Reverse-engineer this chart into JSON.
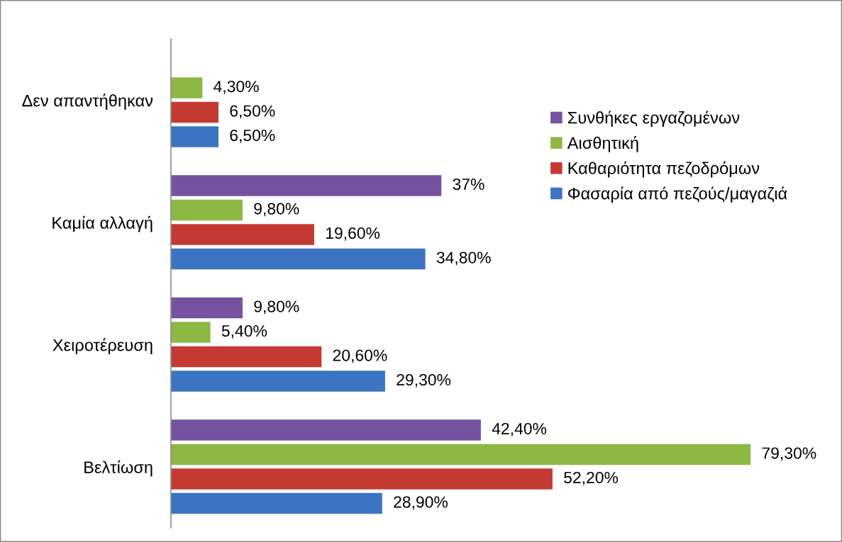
{
  "chart_data": {
    "type": "bar",
    "orientation": "horizontal",
    "categories": [
      "Δεν απαντήθηκαν",
      "Καμία αλλαγή",
      "Χειροτέρευση",
      "Βελτίωση"
    ],
    "series": [
      {
        "name": "Συνθήκες εργαζομένων",
        "color": "#7553a0",
        "values": [
          null,
          37,
          9.8,
          42.4
        ],
        "value_labels": [
          null,
          "37%",
          "9,80%",
          "42,40%"
        ]
      },
      {
        "name": "Αισθητική",
        "color": "#8db843",
        "values": [
          4.3,
          9.8,
          5.4,
          79.3
        ],
        "value_labels": [
          "4,30%",
          "9,80%",
          "5,40%",
          "79,30%"
        ]
      },
      {
        "name": "Καθαριότητα πεζοδρόμων",
        "color": "#c43a33",
        "values": [
          6.5,
          19.6,
          20.6,
          52.2
        ],
        "value_labels": [
          "6,50%",
          "19,60%",
          "20,60%",
          "52,20%"
        ]
      },
      {
        "name": "Φασαρία από πεζούς/μαγαζιά",
        "color": "#3c74c2",
        "values": [
          6.5,
          34.8,
          29.3,
          28.9
        ],
        "value_labels": [
          "6,50%",
          "34,80%",
          "29,30%",
          "28,90%"
        ]
      }
    ],
    "legend": "top right",
    "grid": false,
    "tick_labels": "y"
  }
}
